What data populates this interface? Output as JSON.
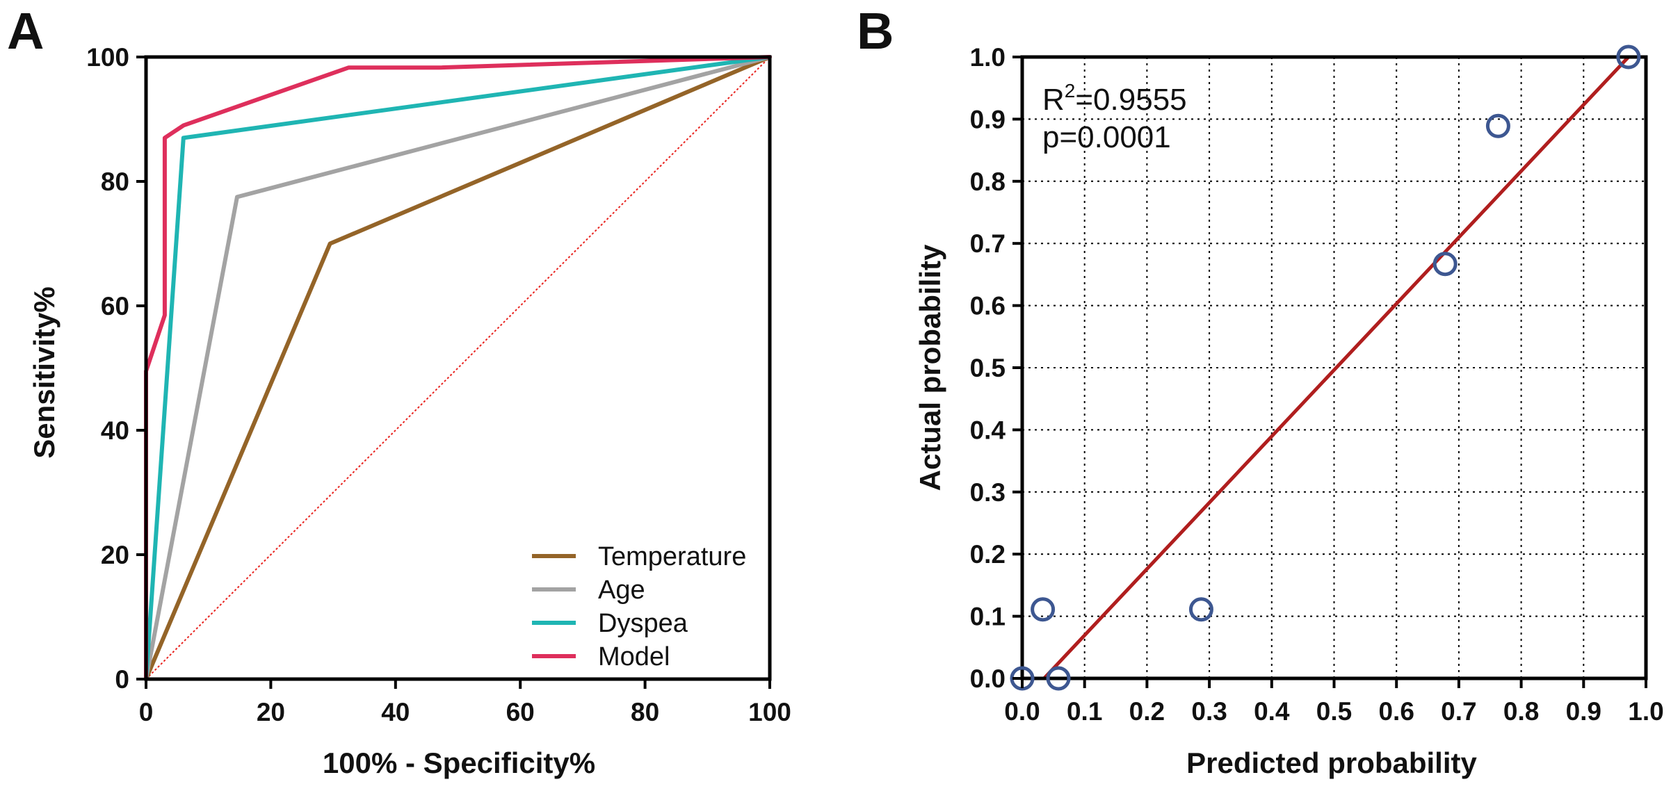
{
  "chart_data": [
    {
      "type": "line",
      "panel_label": "A",
      "title": "",
      "xlabel": "100% - Specificity%",
      "ylabel": "Sensitivity%",
      "xlim": [
        0,
        100
      ],
      "ylim": [
        0,
        100
      ],
      "xticks": [
        "0",
        "20",
        "40",
        "60",
        "80",
        "100"
      ],
      "yticks": [
        "0",
        "20",
        "40",
        "60",
        "80",
        "100"
      ],
      "grid": false,
      "legend_position": "bottom-right",
      "reference_line": {
        "x": [
          0,
          100
        ],
        "y": [
          0,
          100
        ],
        "color": "#e8231f",
        "style": "dotted"
      },
      "series": [
        {
          "name": "Temperature",
          "color": "#946428",
          "x": [
            0,
            29.5,
            100
          ],
          "y": [
            0,
            70,
            100
          ]
        },
        {
          "name": "Age",
          "color": "#a3a3a3",
          "x": [
            0,
            14.6,
            100
          ],
          "y": [
            0,
            77.5,
            100
          ]
        },
        {
          "name": "Dyspea",
          "color": "#1fb5b3",
          "x": [
            0,
            6,
            100
          ],
          "y": [
            0,
            87,
            100
          ]
        },
        {
          "name": "Model",
          "color": "#de2f5c",
          "x": [
            0,
            0,
            3,
            3,
            6,
            32.5,
            47,
            100
          ],
          "y": [
            0,
            49.5,
            58.5,
            87,
            89,
            98.3,
            98.3,
            100
          ]
        }
      ]
    },
    {
      "type": "scatter",
      "panel_label": "B",
      "title": "",
      "xlabel": "Predicted probability",
      "ylabel": "Actual probability",
      "xlim": [
        0,
        1.0
      ],
      "ylim": [
        0,
        1.0
      ],
      "xticks": [
        "0.0",
        "0.1",
        "0.2",
        "0.3",
        "0.4",
        "0.5",
        "0.6",
        "0.7",
        "0.8",
        "0.9",
        "1.0"
      ],
      "yticks": [
        "0.0",
        "0.1",
        "0.2",
        "0.3",
        "0.4",
        "0.5",
        "0.6",
        "0.7",
        "0.8",
        "0.9",
        "1.0"
      ],
      "grid": true,
      "annotation": {
        "r2_prefix": "R",
        "r2_sup": "2",
        "r2_value": "=0.9555",
        "p_text": "p=0.0001"
      },
      "points": {
        "color": "#3d5791",
        "x": [
          0.0,
          0.033,
          0.058,
          0.287,
          0.678,
          0.763,
          0.972
        ],
        "y": [
          0.0,
          0.111,
          0.0,
          0.111,
          0.667,
          0.889,
          1.0
        ]
      },
      "fit_line": {
        "color": "#b01e1e",
        "x": [
          0.035,
          0.972
        ],
        "y": [
          0.0,
          1.0
        ]
      }
    }
  ]
}
